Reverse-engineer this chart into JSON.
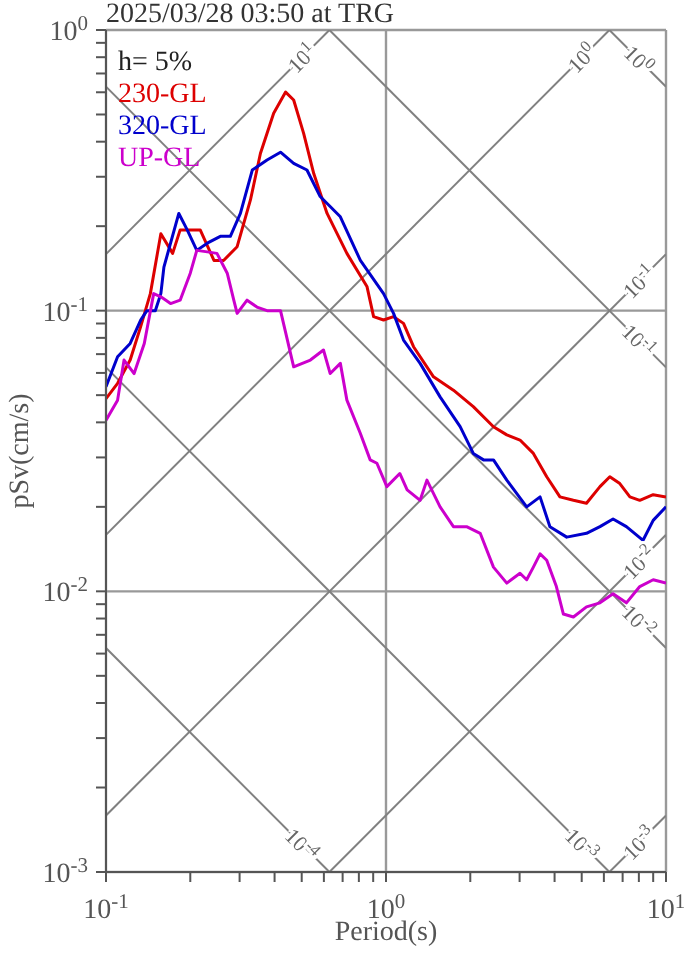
{
  "chart_data": {
    "type": "line",
    "title": "2025/03/28 03:50 at TRG",
    "xlabel": "Period(s)",
    "ylabel": "pSv(cm/s)",
    "xlim": [
      0.1,
      10
    ],
    "ylim": [
      0.001,
      1
    ],
    "log": "xy",
    "grid": true,
    "legend": "top left",
    "marker": "none",
    "xticks": [
      {
        "value": 0.1,
        "label": "10$^{-1}$"
      },
      {
        "value": 0.2,
        "label": null
      },
      {
        "value": 0.3,
        "label": null
      },
      {
        "value": 0.4,
        "label": null
      },
      {
        "value": 0.5,
        "label": null
      },
      {
        "value": 0.6,
        "label": null
      },
      {
        "value": 0.7,
        "label": null
      },
      {
        "value": 0.8,
        "label": null
      },
      {
        "value": 0.9,
        "label": null
      },
      {
        "value": 1,
        "label": "10$^{0}$"
      },
      {
        "value": 2,
        "label": null
      },
      {
        "value": 3,
        "label": null
      },
      {
        "value": 4,
        "label": null
      },
      {
        "value": 5,
        "label": null
      },
      {
        "value": 6,
        "label": null
      },
      {
        "value": 7,
        "label": null
      },
      {
        "value": 8,
        "label": null
      },
      {
        "value": 9,
        "label": null
      },
      {
        "value": 10,
        "label": "10$^{1}$"
      }
    ],
    "yticks": [
      {
        "value": 0.001,
        "label": "10$^{-3}$"
      },
      {
        "value": 0.002,
        "label": null
      },
      {
        "value": 0.003,
        "label": null
      },
      {
        "value": 0.004,
        "label": null
      },
      {
        "value": 0.005,
        "label": null
      },
      {
        "value": 0.006,
        "label": null
      },
      {
        "value": 0.007,
        "label": null
      },
      {
        "value": 0.008,
        "label": null
      },
      {
        "value": 0.009,
        "label": null
      },
      {
        "value": 0.01,
        "label": "10$^{-2}$"
      },
      {
        "value": 0.02,
        "label": null
      },
      {
        "value": 0.03,
        "label": null
      },
      {
        "value": 0.04,
        "label": null
      },
      {
        "value": 0.05,
        "label": null
      },
      {
        "value": 0.06,
        "label": null
      },
      {
        "value": 0.07,
        "label": null
      },
      {
        "value": 0.08,
        "label": null
      },
      {
        "value": 0.09,
        "label": null
      },
      {
        "value": 0.1,
        "label": "10$^{-1}$"
      },
      {
        "value": 0.2,
        "label": null
      },
      {
        "value": 0.3,
        "label": null
      },
      {
        "value": 0.4,
        "label": null
      },
      {
        "value": 0.5,
        "label": null
      },
      {
        "value": 0.6,
        "label": null
      },
      {
        "value": 0.7,
        "label": null
      },
      {
        "value": 0.8,
        "label": null
      },
      {
        "value": 0.9,
        "label": null
      },
      {
        "value": 1,
        "label": "10$^{0}$"
      }
    ],
    "series": [
      {
        "color": "#808080",
        "x": [
          6.28,
          10
        ],
        "values": [
          1,
          0.628
        ]
      },
      {
        "color": "#808080",
        "x": [
          0.628,
          10
        ],
        "values": [
          1,
          0.0628
        ]
      },
      {
        "color": "#808080",
        "x": [
          0.1,
          10
        ],
        "values": [
          0.628,
          0.00628
        ]
      },
      {
        "color": "#808080",
        "x": [
          0.1,
          6.28
        ],
        "values": [
          0.0628,
          0.001
        ]
      },
      {
        "color": "#808080",
        "x": [
          0.1,
          0.628
        ],
        "values": [
          0.00628,
          0.001
        ]
      },
      {
        "color": "#808080",
        "x": [
          0.1,
          0.628
        ],
        "values": [
          0.159,
          1
        ]
      },
      {
        "color": "#808080",
        "x": [
          0.1,
          6.28
        ],
        "values": [
          0.0159,
          1
        ]
      },
      {
        "color": "#808080",
        "x": [
          0.1,
          10
        ],
        "values": [
          0.00159,
          0.159
        ]
      },
      {
        "color": "#808080",
        "x": [
          0.628,
          10
        ],
        "values": [
          0.001,
          0.0159
        ]
      },
      {
        "color": "#808080",
        "x": [
          6.28,
          10
        ],
        "values": [
          0.001,
          0.00159
        ]
      },
      {
        "name": "230-GL",
        "color": "#dd0000",
        "x": [
          0.1,
          0.11,
          0.122,
          0.133,
          0.144,
          0.157,
          0.173,
          0.184,
          0.217,
          0.243,
          0.263,
          0.294,
          0.328,
          0.356,
          0.397,
          0.438,
          0.468,
          0.508,
          0.552,
          0.616,
          0.725,
          0.855,
          0.903,
          0.98,
          1.064,
          1.155,
          1.254,
          1.478,
          1.741,
          2.05,
          2.42,
          2.7,
          3.01,
          3.36,
          3.75,
          4.18,
          4.67,
          5.2,
          5.81,
          6.3,
          6.84,
          7.43,
          8.06,
          9.0,
          10
        ],
        "values": [
          0.0486,
          0.0551,
          0.0667,
          0.0877,
          0.115,
          0.188,
          0.16,
          0.194,
          0.194,
          0.151,
          0.151,
          0.169,
          0.248,
          0.363,
          0.505,
          0.601,
          0.563,
          0.428,
          0.308,
          0.222,
          0.16,
          0.122,
          0.0952,
          0.0926,
          0.0952,
          0.0901,
          0.0744,
          0.0581,
          0.0521,
          0.0455,
          0.0386,
          0.0361,
          0.0346,
          0.031,
          0.0256,
          0.0217,
          0.0211,
          0.0206,
          0.0236,
          0.0256,
          0.0242,
          0.0217,
          0.0211,
          0.0221,
          0.0217
        ]
      },
      {
        "name": "320-GL",
        "color": "#0000cc",
        "x": [
          0.1,
          0.11,
          0.122,
          0.133,
          0.14,
          0.15,
          0.157,
          0.161,
          0.182,
          0.195,
          0.211,
          0.23,
          0.256,
          0.278,
          0.302,
          0.333,
          0.376,
          0.42,
          0.468,
          0.522,
          0.582,
          0.687,
          0.81,
          0.98,
          1.064,
          1.155,
          1.324,
          1.56,
          1.84,
          2.05,
          2.23,
          2.42,
          2.7,
          3.18,
          3.55,
          3.85,
          4.42,
          5.2,
          5.81,
          6.47,
          7.22,
          8.28,
          9.0,
          10
        ],
        "values": [
          0.0536,
          0.0685,
          0.0764,
          0.0925,
          0.1,
          0.1,
          0.115,
          0.143,
          0.222,
          0.194,
          0.164,
          0.174,
          0.184,
          0.184,
          0.222,
          0.317,
          0.344,
          0.367,
          0.335,
          0.317,
          0.255,
          0.216,
          0.151,
          0.115,
          0.0978,
          0.0786,
          0.0649,
          0.0493,
          0.0386,
          0.031,
          0.0294,
          0.0294,
          0.0249,
          0.02,
          0.0217,
          0.017,
          0.0156,
          0.0161,
          0.017,
          0.0181,
          0.017,
          0.0152,
          0.0179,
          0.02
        ]
      },
      {
        "name": "UP-GL",
        "color": "#cc00cc",
        "x": [
          0.1,
          0.11,
          0.116,
          0.126,
          0.137,
          0.148,
          0.157,
          0.17,
          0.184,
          0.2,
          0.211,
          0.23,
          0.249,
          0.271,
          0.286,
          0.294,
          0.319,
          0.346,
          0.376,
          0.42,
          0.468,
          0.537,
          0.598,
          0.632,
          0.687,
          0.725,
          0.81,
          0.878,
          0.928,
          1.007,
          1.12,
          1.19,
          1.324,
          1.4,
          1.56,
          1.741,
          1.94,
          2.17,
          2.42,
          2.7,
          3.01,
          3.18,
          3.36,
          3.55,
          3.75,
          4.06,
          4.3,
          4.67,
          5.2,
          5.81,
          6.47,
          7.22,
          8.06,
          9.0,
          10
        ],
        "values": [
          0.0407,
          0.048,
          0.0667,
          0.0597,
          0.0764,
          0.115,
          0.112,
          0.106,
          0.109,
          0.136,
          0.164,
          0.162,
          0.16,
          0.136,
          0.109,
          0.0978,
          0.109,
          0.103,
          0.1,
          0.1,
          0.0631,
          0.0667,
          0.0724,
          0.0597,
          0.0649,
          0.048,
          0.0365,
          0.0294,
          0.0286,
          0.0236,
          0.0263,
          0.023,
          0.0211,
          0.0249,
          0.02,
          0.017,
          0.017,
          0.0161,
          0.0122,
          0.0107,
          0.0116,
          0.011,
          0.0122,
          0.0136,
          0.0129,
          0.0104,
          0.0083,
          0.0081,
          0.0088,
          0.0091,
          0.0098,
          0.0091,
          0.0104,
          0.011,
          0.0107
        ]
      }
    ],
    "annotations": [
      "h= 5%",
      {
        "text": "10$^{1}$",
        "x": 0.5,
        "y": 0.795
      },
      {
        "text": "10$^{0}$",
        "x": 5,
        "y": 0.795
      },
      {
        "text": "10$^{0}$",
        "x": 8,
        "y": 0.785
      },
      {
        "text": "10$^{-1}$",
        "x": 8,
        "y": 0.127
      },
      {
        "text": "10$^{-1}$",
        "x": 8,
        "y": 0.0785
      },
      {
        "text": "10$^{-2}$",
        "x": 8,
        "y": 0.0127
      },
      {
        "text": "10$^{-2}$",
        "x": 8,
        "y": 0.00785
      },
      {
        "text": "10$^{-4}$",
        "x": 0.5,
        "y": 0.001256
      },
      {
        "text": "10$^{-3}$",
        "x": 5,
        "y": 0.001256
      },
      {
        "text": "10$^{-3}$",
        "x": 8,
        "y": 0.00127
      }
    ]
  }
}
